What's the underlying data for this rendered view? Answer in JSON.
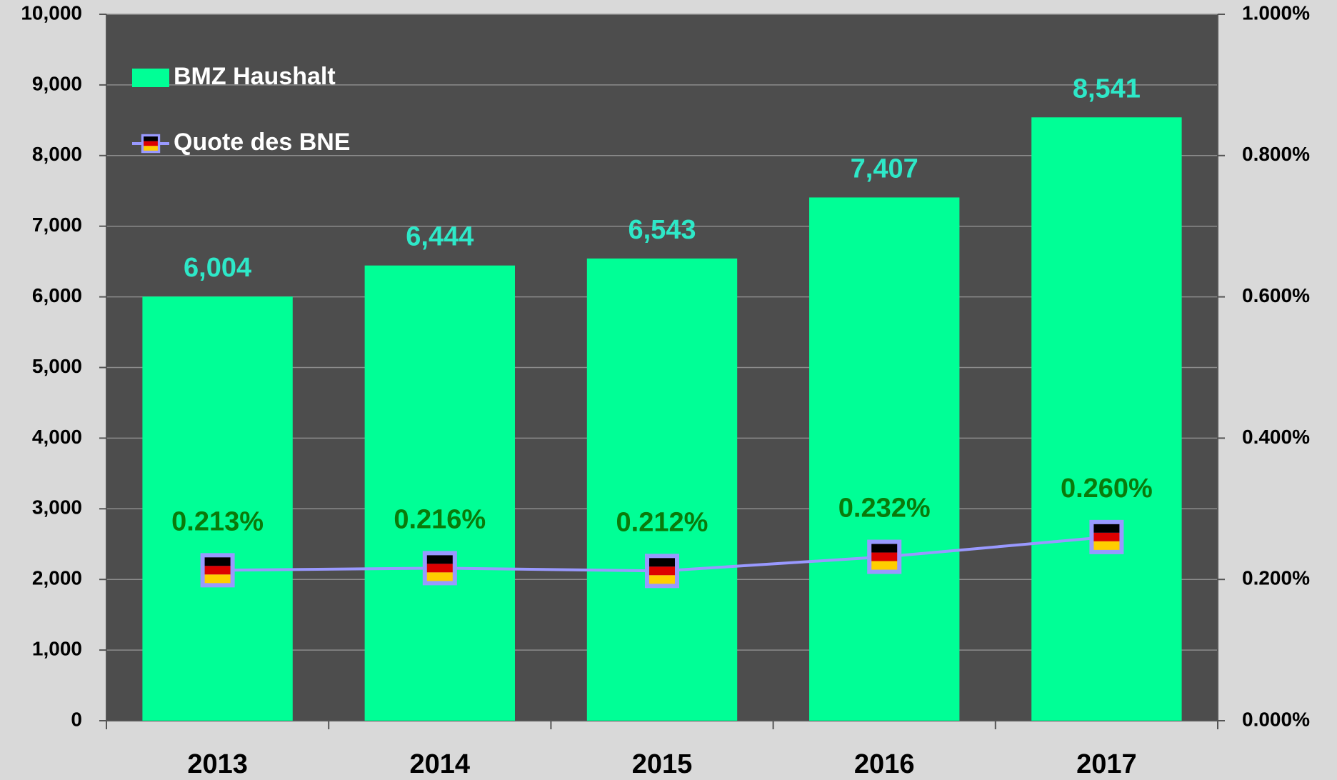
{
  "chart_data": {
    "type": "bar",
    "categories": [
      "2013",
      "2014",
      "2015",
      "2016",
      "2017"
    ],
    "series": [
      {
        "name": "BMZ Haushalt",
        "type": "bar",
        "color": "#00ff96",
        "values": [
          6004,
          6444,
          6543,
          7407,
          8541
        ],
        "value_labels": [
          "6,004",
          "6,444",
          "6,543",
          "7,407",
          "8,541"
        ],
        "label_color": "#2ee8c8"
      },
      {
        "name": "Quote des BNE",
        "type": "line",
        "axis": "y2",
        "color": "#9999ff",
        "values": [
          0.213,
          0.216,
          0.212,
          0.232,
          0.26
        ],
        "value_labels": [
          "0.213%",
          "0.216%",
          "0.212%",
          "0.232%",
          "0.260%"
        ],
        "label_color": "#0a7a0a"
      }
    ],
    "ylim": [
      0,
      10000
    ],
    "yticks": [
      0,
      {
        "value": 1000,
        "label": "1,000"
      },
      {
        "value": 2000,
        "label": "2,000"
      },
      {
        "value": 3000,
        "label": "3,000"
      },
      {
        "value": 4000,
        "label": "4,000"
      },
      {
        "value": 5000,
        "label": "5,000"
      },
      {
        "value": 6000,
        "label": "6,000"
      },
      {
        "value": 7000,
        "label": "7,000"
      },
      {
        "value": 8000,
        "label": "8,000"
      },
      {
        "value": 9000,
        "label": "9,000"
      },
      {
        "value": 10000,
        "label": "10,000"
      }
    ],
    "y2lim": [
      0,
      1
    ],
    "y2ticks": [
      {
        "value": 0,
        "label": "0.000%"
      },
      {
        "value": 0.2,
        "label": "0.200%"
      },
      {
        "value": 0.4,
        "label": "0.400%"
      },
      {
        "value": 0.6,
        "label": "0.600%"
      },
      {
        "value": 0.8,
        "label": "0.800%"
      },
      {
        "value": 1,
        "label": "1.000%"
      }
    ],
    "grid": true,
    "legend": "top-left"
  }
}
